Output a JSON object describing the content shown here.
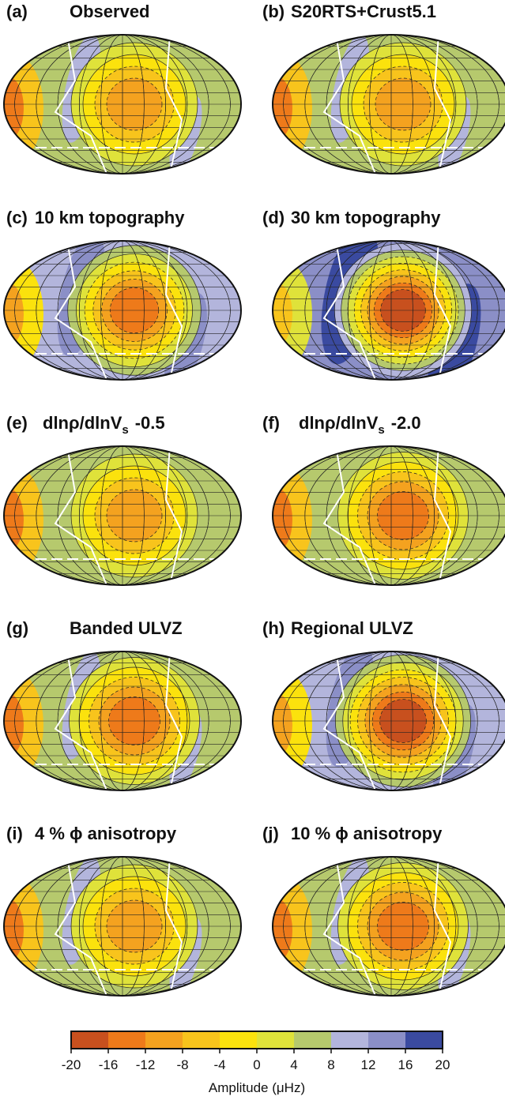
{
  "panels": [
    {
      "label": "(a)",
      "title": "Observed"
    },
    {
      "label": "(b)",
      "title": "S20RTS+Crust5.1"
    },
    {
      "label": "(c)",
      "title": "10 km topography"
    },
    {
      "label": "(d)",
      "title": "30 km topography"
    },
    {
      "label": "(e)",
      "title": "dlnρ/dlnV",
      "title_sub": "s",
      "title_tail": "-0.5"
    },
    {
      "label": "(f)",
      "title": "dlnρ/dlnV",
      "title_sub": "s",
      "title_tail": "-2.0"
    },
    {
      "label": "(g)",
      "title": "Banded ULVZ"
    },
    {
      "label": "(h)",
      "title": "Regional ULVZ"
    },
    {
      "label": "(i)",
      "title": "4 % ϕ anisotropy"
    },
    {
      "label": "(j)",
      "title": "10 % ϕ anisotropy"
    }
  ],
  "chart_data": {
    "type": "colorbar",
    "xlabel": "Amplitude (μHz)",
    "bins": [
      -20,
      -16,
      -12,
      -8,
      -4,
      0,
      4,
      8,
      12,
      16,
      20
    ],
    "colors": [
      "#c8501e",
      "#ee7a1a",
      "#f4a21f",
      "#f8c41c",
      "#fbe20d",
      "#dfe23a",
      "#b6c96d",
      "#b3b5dc",
      "#8b8fc7",
      "#3a4aa0"
    ],
    "xlim": [
      -20,
      20
    ],
    "xticks": [
      -20,
      -16,
      -12,
      -8,
      -4,
      0,
      4,
      8,
      12,
      16,
      20
    ]
  }
}
